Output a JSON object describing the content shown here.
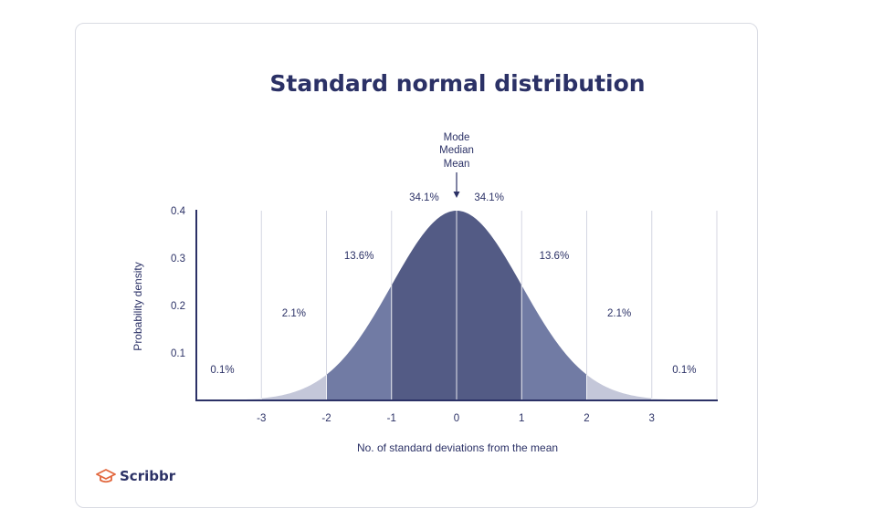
{
  "brand": {
    "name": "Scribbr",
    "accent": "#e2673d"
  },
  "colors": {
    "text": "#2b3166",
    "band1": "#535b85",
    "band2": "#717ba4",
    "band3": "#c4c7d9",
    "band4": "#e6e8f1",
    "grid": "#d4d6e2"
  },
  "chart_data": {
    "type": "area",
    "title": "Standard normal distribution",
    "xlabel": "No. of standard deviations from the mean",
    "ylabel": "Probability density",
    "xlim": [
      -4,
      4
    ],
    "ylim": [
      0,
      0.4
    ],
    "x_ticks": [
      "-3",
      "-2",
      "-1",
      "0",
      "1",
      "2",
      "3"
    ],
    "y_ticks": [
      "0.1",
      "0.2",
      "0.3",
      "0.4"
    ],
    "mean_annotation": [
      "Mode",
      "Median",
      "Mean"
    ],
    "regions": [
      {
        "from": -4,
        "to": -3,
        "label": "0.1%",
        "shade": 4
      },
      {
        "from": -3,
        "to": -2,
        "label": "2.1%",
        "shade": 3
      },
      {
        "from": -2,
        "to": -1,
        "label": "13.6%",
        "shade": 2
      },
      {
        "from": -1,
        "to": 0,
        "label": "34.1%",
        "shade": 1
      },
      {
        "from": 0,
        "to": 1,
        "label": "34.1%",
        "shade": 1
      },
      {
        "from": 1,
        "to": 2,
        "label": "13.6%",
        "shade": 2
      },
      {
        "from": 2,
        "to": 3,
        "label": "2.1%",
        "shade": 3
      },
      {
        "from": 3,
        "to": 4,
        "label": "0.1%",
        "shade": 4
      }
    ]
  }
}
